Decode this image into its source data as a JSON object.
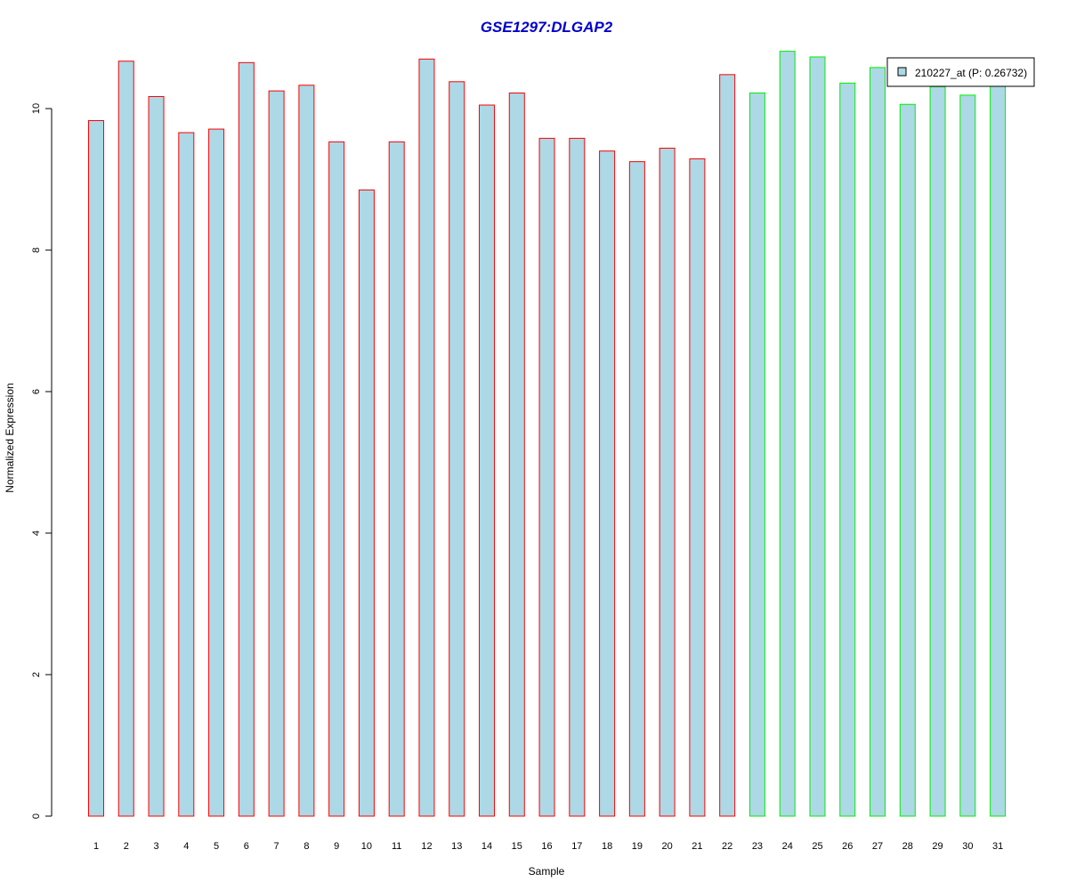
{
  "chart_data": {
    "type": "bar",
    "title": "GSE1297:DLGAP2",
    "xlabel": "Sample",
    "ylabel": "Normalized Expression",
    "ylim": [
      0,
      11
    ],
    "yticks": [
      0,
      2,
      4,
      6,
      8,
      10
    ],
    "categories": [
      "1",
      "2",
      "3",
      "4",
      "5",
      "6",
      "7",
      "8",
      "9",
      "10",
      "11",
      "12",
      "13",
      "14",
      "15",
      "16",
      "17",
      "18",
      "19",
      "20",
      "21",
      "22",
      "23",
      "24",
      "25",
      "26",
      "27",
      "28",
      "29",
      "30",
      "31"
    ],
    "series": [
      {
        "name": "210227_at (P: 0.26732)",
        "values": [
          9.83,
          10.67,
          10.17,
          9.66,
          9.71,
          10.65,
          10.25,
          10.33,
          9.53,
          8.85,
          9.53,
          10.7,
          10.38,
          10.05,
          10.22,
          9.58,
          9.58,
          9.4,
          9.25,
          9.44,
          9.29,
          10.48,
          10.22,
          10.81,
          10.73,
          10.36,
          10.58,
          10.06,
          10.31,
          10.19,
          10.37
        ]
      }
    ],
    "groups": [
      {
        "from": 1,
        "to": 22,
        "border_color": "#ff0000"
      },
      {
        "from": 23,
        "to": 31,
        "border_color": "#00ee00"
      }
    ],
    "bar_fill": "#add8e6",
    "title_color": "#0000cc",
    "legend_position": "top-right",
    "grid": false
  }
}
